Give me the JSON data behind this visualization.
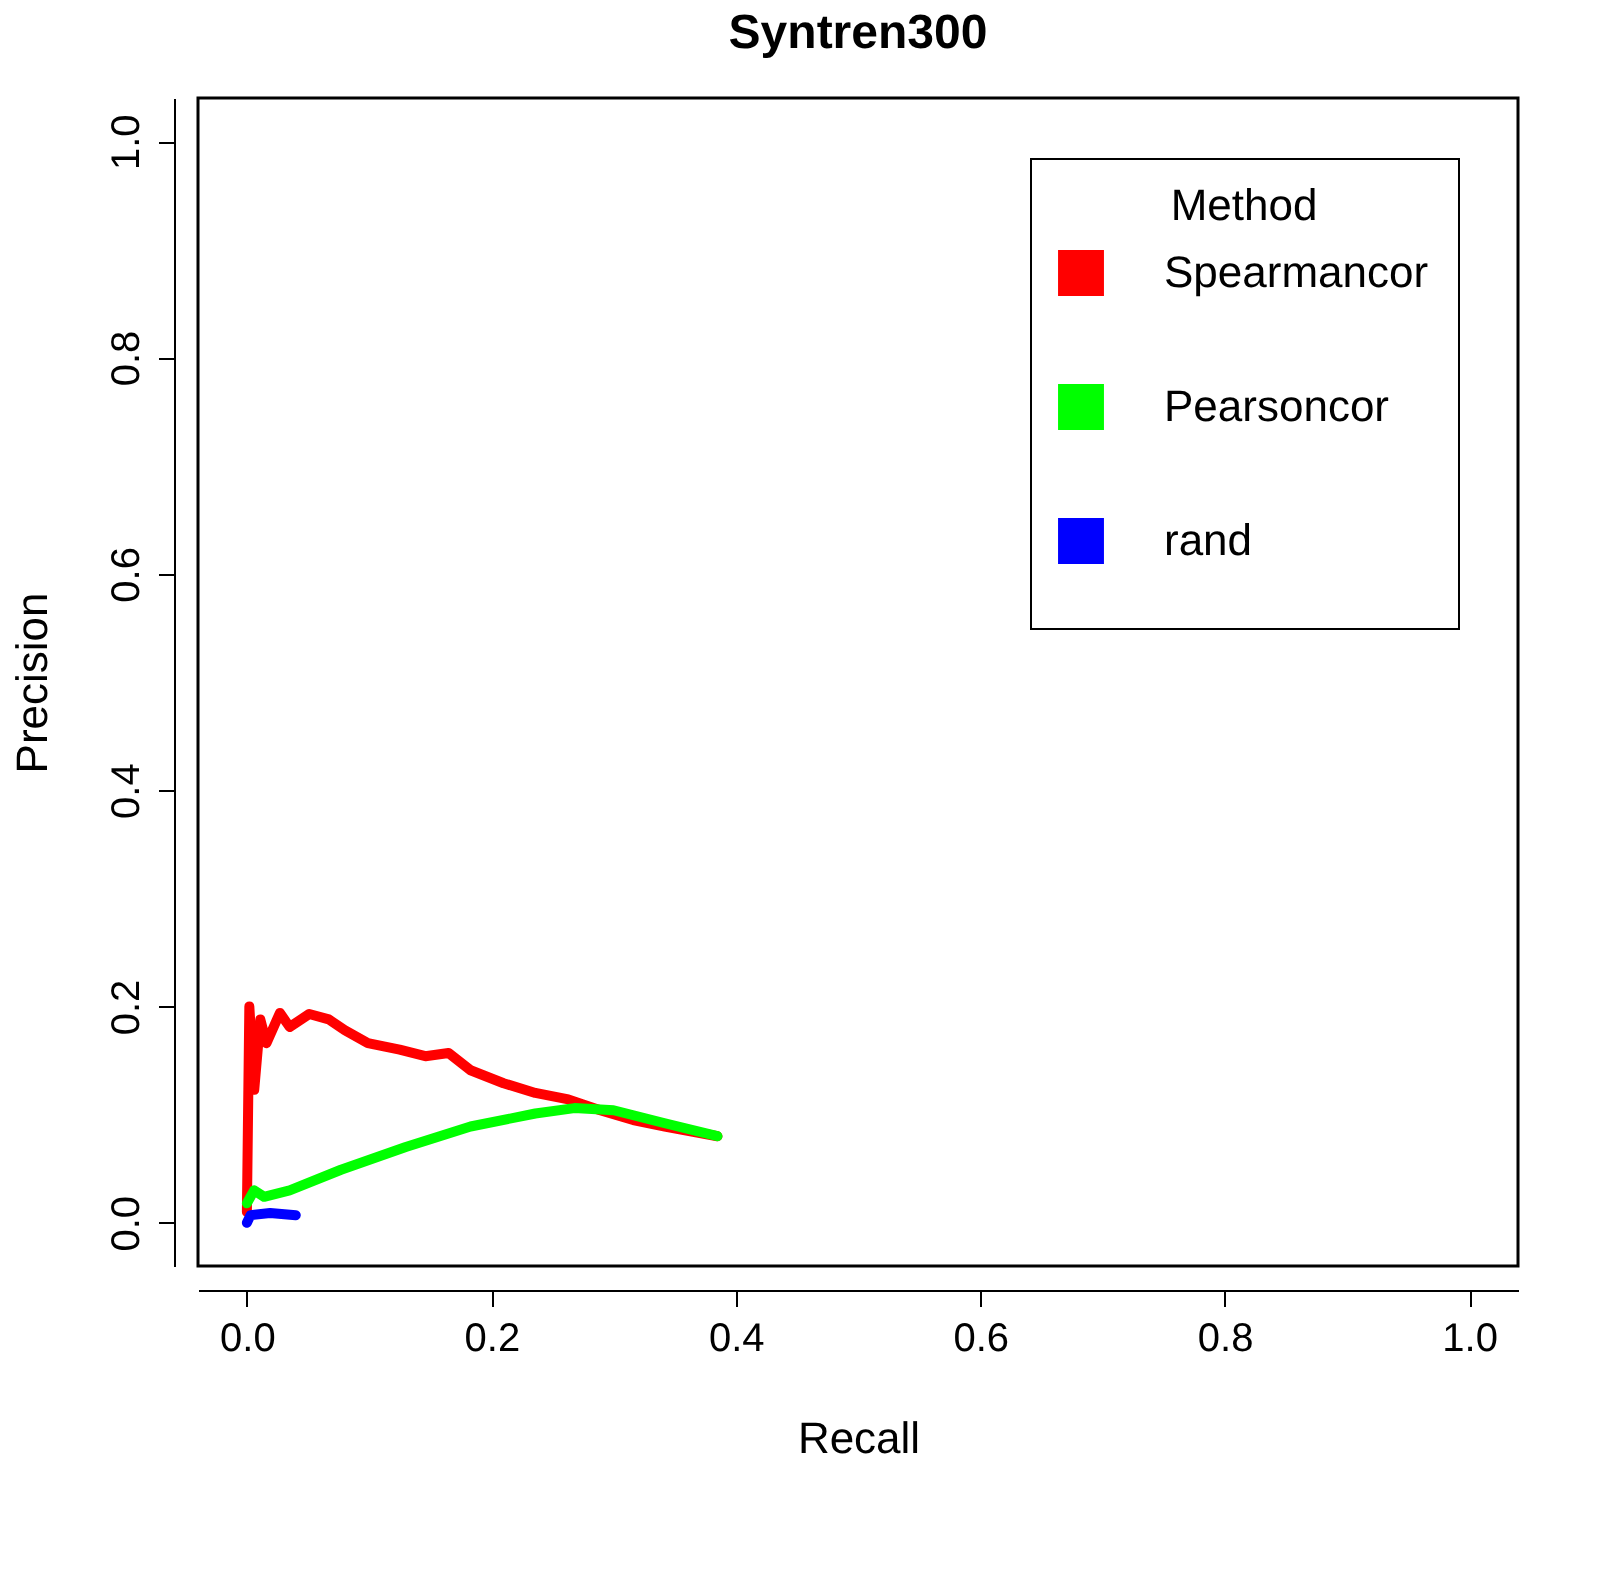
{
  "chart_data": {
    "type": "line",
    "title": "Syntren300",
    "xlabel": "Recall",
    "ylabel": "Precision",
    "legend_title": "Method",
    "legend": "top right",
    "grid": false,
    "marker": "none",
    "line_style": "solid",
    "xlim": [
      -0.04,
      1.04
    ],
    "ylim": [
      -0.04,
      1.04
    ],
    "xticks": [
      {
        "value": 0,
        "label": "0.0"
      },
      0.2,
      0.4,
      0.6,
      0.8,
      {
        "value": 1,
        "label": "1.0"
      }
    ],
    "yticks": [
      {
        "value": 0,
        "label": "0.0"
      },
      0.2,
      0.4,
      0.6,
      0.8,
      {
        "value": 1,
        "label": "1.0"
      }
    ],
    "series": [
      {
        "name": "Spearmancor",
        "color": "#ff0000",
        "x": [
          0,
          0.002,
          0.006,
          0.011,
          0.016,
          0.027,
          0.035,
          0.051,
          0.067,
          0.08,
          0.099,
          0.125,
          0.146,
          0.165,
          0.183,
          0.21,
          0.236,
          0.263,
          0.289,
          0.316,
          0.342,
          0.385
        ],
        "values": [
          0.01,
          0.2,
          0.123,
          0.188,
          0.166,
          0.194,
          0.181,
          0.193,
          0.188,
          0.178,
          0.166,
          0.16,
          0.154,
          0.157,
          0.141,
          0.129,
          0.12,
          0.114,
          0.104,
          0.095,
          0.089,
          0.08
        ]
      },
      {
        "name": "Pearsoncor",
        "color": "#00ff00",
        "x": [
          0,
          0.006,
          0.014,
          0.035,
          0.077,
          0.13,
          0.183,
          0.236,
          0.268,
          0.3,
          0.342,
          0.385
        ],
        "values": [
          0.018,
          0.03,
          0.024,
          0.03,
          0.049,
          0.07,
          0.089,
          0.101,
          0.106,
          0.104,
          0.092,
          0.08
        ]
      },
      {
        "name": "rand",
        "color": "#0000ff",
        "x": [
          0,
          0.003,
          0.019,
          0.04
        ],
        "values": [
          0,
          0.007,
          0.009,
          0.007
        ]
      }
    ]
  }
}
